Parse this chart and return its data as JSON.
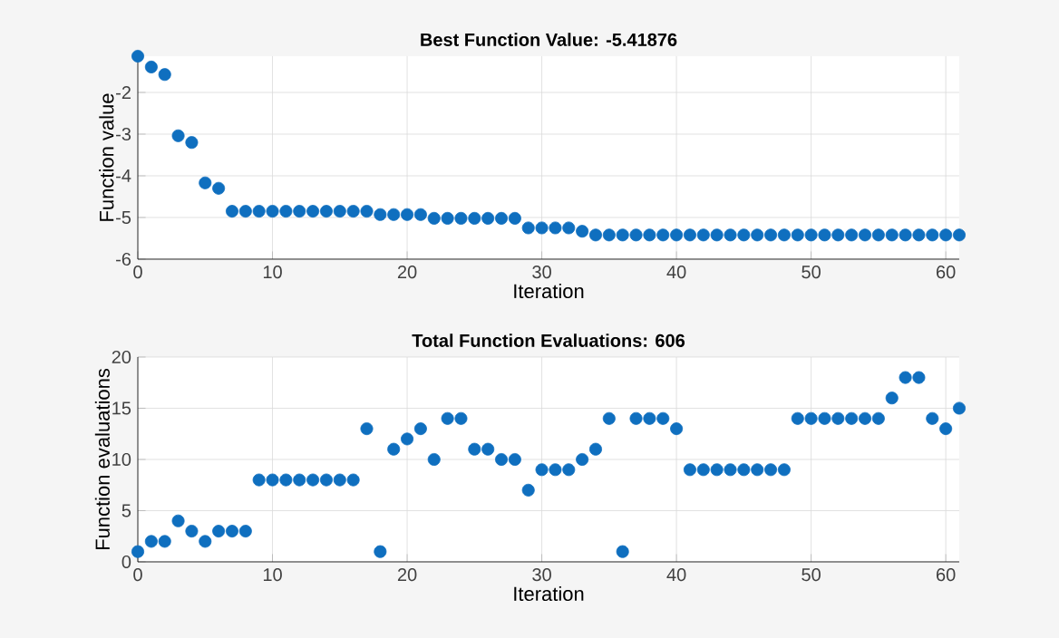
{
  "chart_data": [
    {
      "type": "scatter",
      "title": "Best Function Value: -5.41876",
      "xlabel": "Iteration",
      "ylabel": "Function value",
      "marker": "circle",
      "grid": true,
      "xlim": [
        0,
        61
      ],
      "ylim": [
        -6,
        -1.13
      ],
      "xticks": [
        0,
        10,
        20,
        30,
        40,
        50,
        60
      ],
      "yticks": [
        -6,
        -5,
        -4,
        -3,
        -2
      ],
      "x": [
        0,
        1,
        2,
        3,
        4,
        5,
        6,
        7,
        8,
        9,
        10,
        11,
        12,
        13,
        14,
        15,
        16,
        17,
        18,
        19,
        20,
        21,
        22,
        23,
        24,
        25,
        26,
        27,
        28,
        29,
        30,
        31,
        32,
        33,
        34,
        35,
        36,
        37,
        38,
        39,
        40,
        41,
        42,
        43,
        44,
        45,
        46,
        47,
        48,
        49,
        50,
        51,
        52,
        53,
        54,
        55,
        56,
        57,
        58,
        59,
        60,
        61
      ],
      "series": [
        {
          "color": "#0f6fbf",
          "values": [
            -1.13,
            -1.39,
            -1.57,
            -3.04,
            -3.2,
            -4.17,
            -4.3,
            -4.85,
            -4.85,
            -4.85,
            -4.85,
            -4.85,
            -4.85,
            -4.85,
            -4.85,
            -4.85,
            -4.85,
            -4.85,
            -4.93,
            -4.93,
            -4.93,
            -4.93,
            -5.02,
            -5.02,
            -5.02,
            -5.02,
            -5.02,
            -5.02,
            -5.02,
            -5.25,
            -5.25,
            -5.25,
            -5.25,
            -5.33,
            -5.42,
            -5.42,
            -5.42,
            -5.42,
            -5.42,
            -5.42,
            -5.42,
            -5.42,
            -5.42,
            -5.42,
            -5.42,
            -5.42,
            -5.42,
            -5.42,
            -5.42,
            -5.42,
            -5.42,
            -5.42,
            -5.42,
            -5.42,
            -5.42,
            -5.42,
            -5.42,
            -5.42,
            -5.42,
            -5.42,
            -5.42,
            -5.42
          ]
        }
      ]
    },
    {
      "type": "scatter",
      "title": "Total Function Evaluations: 606",
      "xlabel": "Iteration",
      "ylabel": "Function evaluations",
      "marker": "circle",
      "grid": true,
      "xlim": [
        0,
        61
      ],
      "ylim": [
        0,
        20
      ],
      "xticks": [
        0,
        10,
        20,
        30,
        40,
        50,
        60
      ],
      "yticks": [
        0,
        5,
        10,
        15,
        20
      ],
      "x": [
        0,
        1,
        2,
        3,
        4,
        5,
        6,
        7,
        8,
        9,
        10,
        11,
        12,
        13,
        14,
        15,
        16,
        17,
        18,
        19,
        20,
        21,
        22,
        23,
        24,
        25,
        26,
        27,
        28,
        29,
        30,
        31,
        32,
        33,
        34,
        35,
        36,
        37,
        38,
        39,
        40,
        41,
        42,
        43,
        44,
        45,
        46,
        47,
        48,
        49,
        50,
        51,
        52,
        53,
        54,
        55,
        56,
        57,
        58,
        59,
        60,
        61
      ],
      "series": [
        {
          "color": "#0f6fbf",
          "values": [
            1,
            2,
            2,
            4,
            3,
            2,
            3,
            3,
            3,
            8,
            8,
            8,
            8,
            8,
            8,
            8,
            8,
            13,
            1,
            11,
            12,
            13,
            10,
            14,
            14,
            11,
            11,
            10,
            10,
            7,
            9,
            9,
            9,
            10,
            11,
            14,
            1,
            14,
            14,
            14,
            13,
            9,
            9,
            9,
            9,
            9,
            9,
            9,
            9,
            14,
            14,
            14,
            14,
            14,
            14,
            14,
            16,
            18,
            18,
            14,
            13,
            15
          ]
        }
      ]
    }
  ]
}
